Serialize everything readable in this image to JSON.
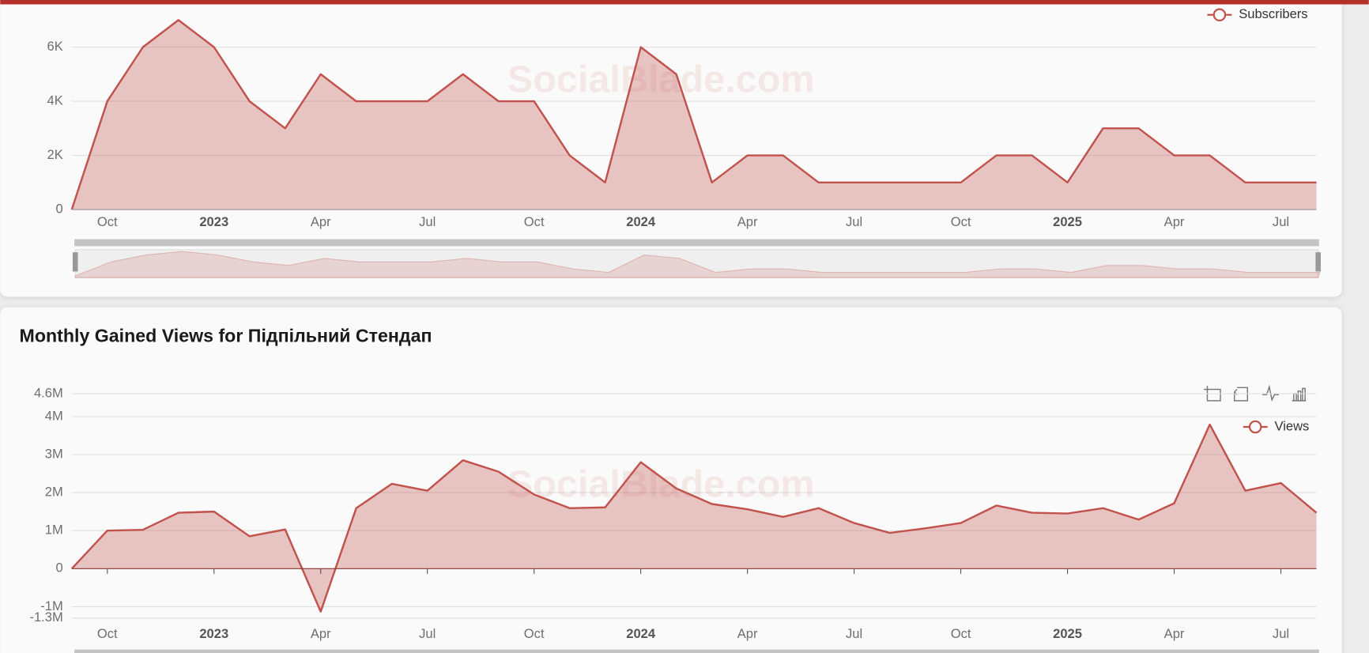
{
  "chart_data": [
    {
      "type": "area",
      "watermark": "SocialBlade.com",
      "categories": [
        null,
        "Oct",
        null,
        null,
        "2023",
        null,
        null,
        "Apr",
        null,
        null,
        "Jul",
        null,
        null,
        "Oct",
        null,
        null,
        "2024",
        null,
        null,
        "Apr",
        null,
        null,
        "Jul",
        null,
        null,
        "Oct",
        null,
        null,
        "2025",
        null,
        null,
        "Apr",
        null,
        null,
        "Jul",
        null
      ],
      "series": [
        {
          "name": "Subscribers",
          "color": "#c1524c",
          "values": [
            0,
            4000,
            6000,
            7000,
            6000,
            4000,
            3000,
            5000,
            4000,
            4000,
            4000,
            5000,
            4000,
            4000,
            2000,
            1000,
            6000,
            5000,
            1000,
            2000,
            2000,
            1000,
            1000,
            1000,
            1000,
            1000,
            2000,
            2000,
            1000,
            3000,
            3000,
            2000,
            2000,
            1000,
            1000,
            1000
          ]
        }
      ],
      "ylim": [
        0,
        8000
      ],
      "yticks": [
        0,
        {
          "value": 2000,
          "label": "2K"
        },
        {
          "value": 4000,
          "label": "4K"
        },
        {
          "value": 6000,
          "label": "6K"
        }
      ],
      "grid": true
    },
    {
      "type": "area",
      "title": "Monthly Gained Views for Підпільний Стендап",
      "watermark": "SocialBlade.com",
      "categories": [
        null,
        "Oct",
        null,
        null,
        "2023",
        null,
        null,
        "Apr",
        null,
        null,
        "Jul",
        null,
        null,
        "Oct",
        null,
        null,
        "2024",
        null,
        null,
        "Apr",
        null,
        null,
        "Jul",
        null,
        null,
        "Oct",
        null,
        null,
        "2025",
        null,
        null,
        "Apr",
        null,
        null,
        "Jul",
        null
      ],
      "series": [
        {
          "name": "Views",
          "color": "#c1524c",
          "values": [
            0,
            1000000,
            1020000,
            1470000,
            1500000,
            850000,
            1030000,
            -1130000,
            1590000,
            2230000,
            2050000,
            2850000,
            2550000,
            1950000,
            1590000,
            1610000,
            2800000,
            2110000,
            1700000,
            1560000,
            1360000,
            1590000,
            1200000,
            940000,
            1060000,
            1200000,
            1660000,
            1470000,
            1450000,
            1590000,
            1290000,
            1720000,
            3790000,
            2050000,
            2250000,
            1470000
          ]
        }
      ],
      "ylim": [
        -1300000,
        4600000
      ],
      "yticks": [
        {
          "value": -1300000,
          "label": "-1.3M"
        },
        {
          "value": -1000000,
          "label": "-1M"
        },
        0,
        {
          "value": 1000000,
          "label": "1M"
        },
        {
          "value": 2000000,
          "label": "2M"
        },
        {
          "value": 3000000,
          "label": "3M"
        },
        {
          "value": 4000000,
          "label": "4M"
        },
        {
          "value": 4600000,
          "label": "4.6M"
        }
      ],
      "grid": true
    }
  ]
}
